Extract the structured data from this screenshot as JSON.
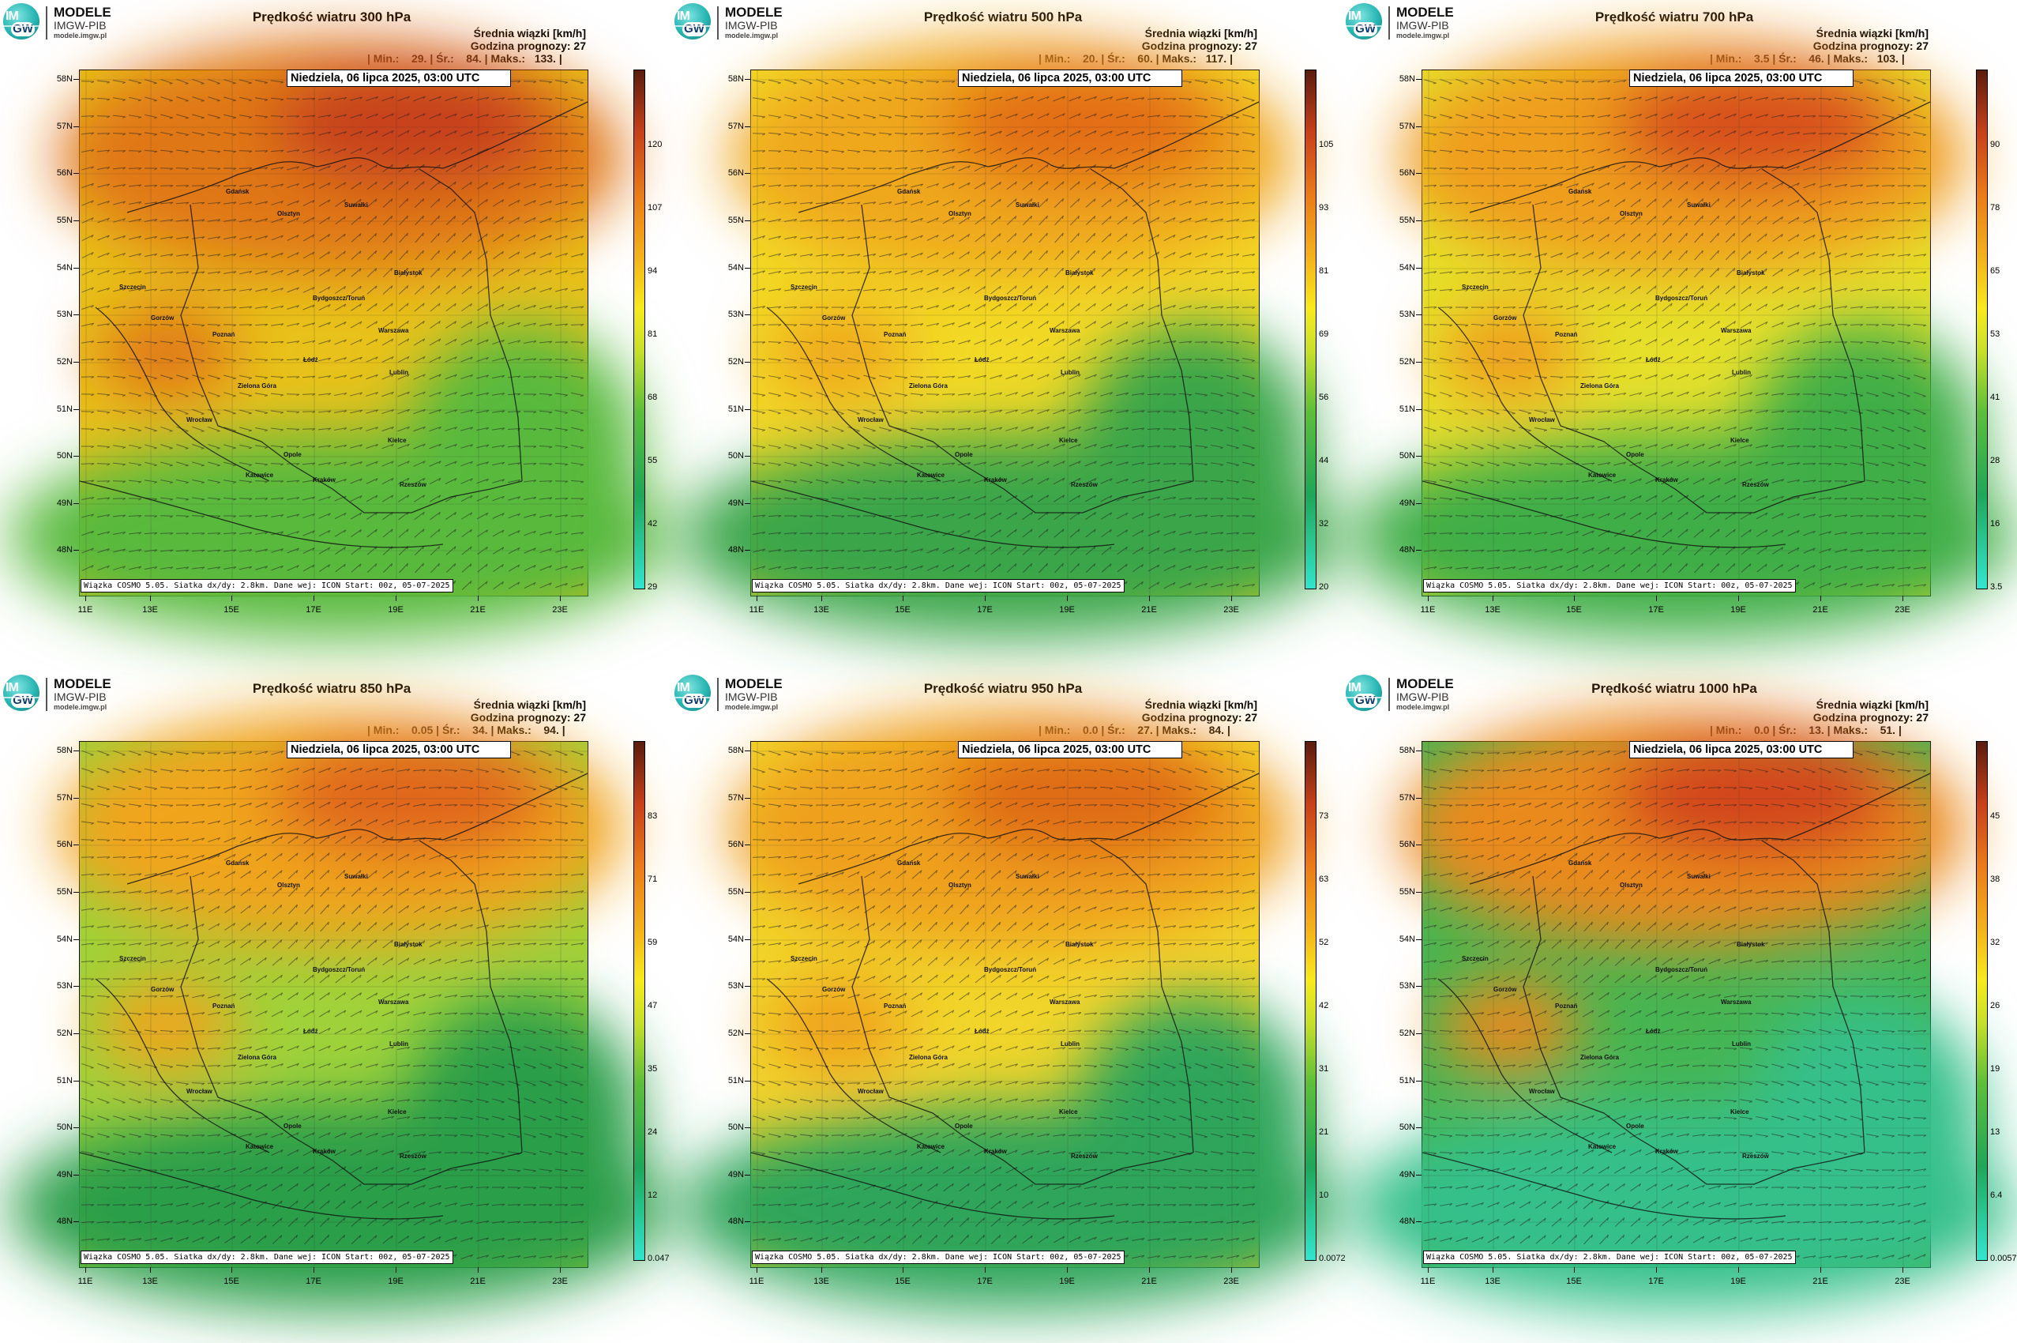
{
  "logo": {
    "line1": "MODELE",
    "line2": "IMGW-PIB",
    "line3": "modele.imgw.pl",
    "badge_top": "IM",
    "badge_bottom": "GW"
  },
  "common": {
    "avg_label": "Średnia wiązki [km/h]",
    "forecast_hour": "Godzina prognozy: 27",
    "date": "Niedziela, 06 lipca 2025, 03:00 UTC",
    "footer": "Wiązka COSMO 5.05. Siatka dx/dy: 2.8km. Dane wej: ICON Start: 00z, 05-07-2025",
    "lat_labels": [
      "58N",
      "57N",
      "56N",
      "55N",
      "54N",
      "53N",
      "52N",
      "51N",
      "50N",
      "49N",
      "48N"
    ],
    "lon_labels": [
      "11E",
      "13E",
      "15E",
      "17E",
      "19E",
      "21E",
      "23E"
    ],
    "cities": [
      "Gdańsk",
      "Olsztyn",
      "Suwałki",
      "Szczecin",
      "Białystok",
      "Bydgoszcz/Toruń",
      "Gorzów",
      "Poznań",
      "Warszawa",
      "Łódź",
      "Zielona Góra",
      "Lublin",
      "Wrocław",
      "Kielce",
      "Opole",
      "Katowice",
      "Kraków",
      "Rzeszów"
    ]
  },
  "panels": [
    {
      "title": "Prędkość wiatru 300 hPa",
      "stats": "| Min.:    29. | Śr.:    84. | Maks.:   133. |",
      "colorbar": [
        "29",
        "42",
        "55",
        "68",
        "81",
        "94",
        "107",
        "120"
      ],
      "colors": {
        "base": "#e8c21a",
        "high": "#e07716",
        "peak": "#c7401a",
        "low": "#58b93d"
      }
    },
    {
      "title": "Prędkość wiatru 500 hPa",
      "stats": "| Min.:    20. | Śr.:    60. | Maks.:   117. |",
      "colorbar": [
        "20",
        "32",
        "44",
        "56",
        "69",
        "81",
        "93",
        "105"
      ],
      "colors": {
        "base": "#f2d925",
        "high": "#efa71c",
        "peak": "#e36d18",
        "low": "#3aa64a"
      }
    },
    {
      "title": "Prędkość wiatru 700 hPa",
      "stats": "| Min.:    3.5 | Śr.:    46. | Maks.:   103. |",
      "colorbar": [
        "3.5",
        "16",
        "28",
        "41",
        "53",
        "65",
        "78",
        "90"
      ],
      "colors": {
        "base": "#e6e02a",
        "high": "#ef9d1a",
        "peak": "#d8501a",
        "low": "#3fae46"
      }
    },
    {
      "title": "Prędkość wiatru 850 hPa",
      "stats": "| Min.:    0.05 | Śr.:    34. | Maks.:    94. |",
      "colorbar": [
        "0.047",
        "12",
        "24",
        "35",
        "47",
        "59",
        "71",
        "83"
      ],
      "colors": {
        "base": "#9fd23a",
        "high": "#f0a41a",
        "peak": "#e0661a",
        "low": "#2a9e4a"
      }
    },
    {
      "title": "Prędkość wiatru 950 hPa",
      "stats": "| Min.:    0.0 | Śr.:    27. | Maks.:    84. |",
      "colorbar": [
        "0.0072",
        "10",
        "21",
        "31",
        "42",
        "52",
        "63",
        "73"
      ],
      "colors": {
        "base": "#f1d52a",
        "high": "#efa01c",
        "peak": "#df6a18",
        "low": "#2fa55a"
      }
    },
    {
      "title": "Prędkość wiatru 1000 hPa",
      "stats": "| Min.:    0.0 | Śr.:    13. | Maks.:    51. |",
      "colorbar": [
        "0.0057",
        "6.4",
        "13",
        "19",
        "26",
        "32",
        "38",
        "45"
      ],
      "colors": {
        "base": "#46b552",
        "high": "#ea8a1a",
        "peak": "#d2451a",
        "low": "#35c08a"
      }
    }
  ]
}
